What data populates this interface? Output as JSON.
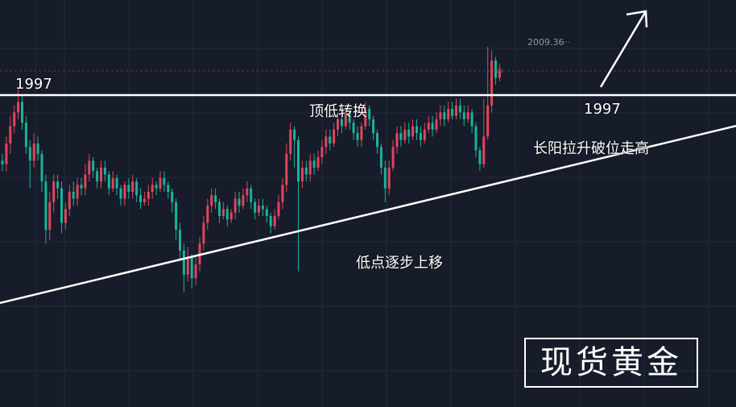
{
  "annotations": {
    "level_left": "1997",
    "level_right": "1997",
    "top_bottom_switch": "顶低转换",
    "higher_lows": "低点逐步上移",
    "long_bull_breakout": "长阳拉升破位走高"
  },
  "brand": {
    "text": "现货黄金"
  },
  "chart_data": {
    "type": "candlestick",
    "title": "",
    "xlabel": "",
    "ylabel": "",
    "grid": true,
    "ylim": [
      1925,
      2025
    ],
    "peak_label": "2009.36",
    "resistance_level": 1997,
    "trendline": {
      "from_index": 0,
      "from_price": 1937,
      "to_index": 182,
      "to_price": 1987
    },
    "colors": {
      "up": "#e0465c",
      "down": "#18b49a",
      "background": "#171c2a",
      "grid": "#232a3a",
      "line": "#ffffff"
    },
    "candles": [
      [
        1978,
        1977,
        1980,
        1975
      ],
      [
        1977,
        1983,
        1985,
        1975
      ],
      [
        1983,
        1988,
        1991,
        1980
      ],
      [
        1988,
        1992,
        1994,
        1986
      ],
      [
        1992,
        1995,
        1999,
        1990
      ],
      [
        1995,
        1989,
        1997,
        1987
      ],
      [
        1989,
        1982,
        1991,
        1980
      ],
      [
        1982,
        1978,
        1984,
        1970
      ],
      [
        1978,
        1983,
        1986,
        1976
      ],
      [
        1983,
        1980,
        1985,
        1978
      ],
      [
        1980,
        1972,
        1981,
        1969
      ],
      [
        1972,
        1958,
        1974,
        1954
      ],
      [
        1958,
        1966,
        1969,
        1955
      ],
      [
        1966,
        1972,
        1974,
        1963
      ],
      [
        1972,
        1970,
        1974,
        1967
      ],
      [
        1970,
        1960,
        1972,
        1957
      ],
      [
        1960,
        1964,
        1966,
        1958
      ],
      [
        1964,
        1969,
        1971,
        1962
      ],
      [
        1969,
        1967,
        1972,
        1965
      ],
      [
        1967,
        1971,
        1973,
        1965
      ],
      [
        1971,
        1970,
        1973,
        1968
      ],
      [
        1970,
        1974,
        1977,
        1968
      ],
      [
        1974,
        1978,
        1980,
        1972
      ],
      [
        1978,
        1975,
        1979,
        1973
      ],
      [
        1975,
        1972,
        1976,
        1970
      ],
      [
        1972,
        1976,
        1978,
        1970
      ],
      [
        1976,
        1974,
        1978,
        1972
      ],
      [
        1974,
        1970,
        1975,
        1968
      ],
      [
        1970,
        1973,
        1975,
        1969
      ],
      [
        1973,
        1970,
        1974,
        1968
      ],
      [
        1970,
        1967,
        1971,
        1965
      ],
      [
        1967,
        1971,
        1972,
        1965
      ],
      [
        1971,
        1969,
        1973,
        1967
      ],
      [
        1969,
        1972,
        1974,
        1967
      ],
      [
        1972,
        1968,
        1973,
        1966
      ],
      [
        1968,
        1966,
        1970,
        1964
      ],
      [
        1966,
        1967,
        1969,
        1965
      ],
      [
        1967,
        1969,
        1971,
        1965
      ],
      [
        1969,
        1971,
        1973,
        1967
      ],
      [
        1971,
        1970,
        1972,
        1968
      ],
      [
        1970,
        1973,
        1975,
        1969
      ],
      [
        1973,
        1971,
        1975,
        1969
      ],
      [
        1971,
        1969,
        1972,
        1967
      ],
      [
        1969,
        1966,
        1970,
        1963
      ],
      [
        1966,
        1958,
        1967,
        1955
      ],
      [
        1958,
        1952,
        1960,
        1949
      ],
      [
        1952,
        1945,
        1954,
        1940
      ],
      [
        1945,
        1950,
        1953,
        1943
      ],
      [
        1950,
        1944,
        1951,
        1941
      ],
      [
        1944,
        1948,
        1950,
        1942
      ],
      [
        1948,
        1954,
        1956,
        1946
      ],
      [
        1954,
        1960,
        1962,
        1952
      ],
      [
        1960,
        1965,
        1967,
        1958
      ],
      [
        1965,
        1968,
        1970,
        1963
      ],
      [
        1968,
        1966,
        1970,
        1964
      ],
      [
        1966,
        1962,
        1967,
        1960
      ],
      [
        1962,
        1964,
        1966,
        1961
      ],
      [
        1964,
        1961,
        1965,
        1959
      ],
      [
        1961,
        1963,
        1964,
        1960
      ],
      [
        1963,
        1967,
        1969,
        1961
      ],
      [
        1967,
        1965,
        1969,
        1963
      ],
      [
        1965,
        1968,
        1970,
        1964
      ],
      [
        1968,
        1970,
        1972,
        1966
      ],
      [
        1970,
        1966,
        1971,
        1964
      ],
      [
        1966,
        1963,
        1967,
        1961
      ],
      [
        1963,
        1965,
        1967,
        1962
      ],
      [
        1965,
        1964,
        1967,
        1962
      ],
      [
        1964,
        1962,
        1965,
        1960
      ],
      [
        1962,
        1959,
        1963,
        1957
      ],
      [
        1959,
        1962,
        1964,
        1958
      ],
      [
        1962,
        1966,
        1968,
        1961
      ],
      [
        1966,
        1971,
        1973,
        1964
      ],
      [
        1971,
        1980,
        1983,
        1969
      ],
      [
        1980,
        1987,
        1989,
        1978
      ],
      [
        1987,
        1984,
        1988,
        1976
      ],
      [
        1984,
        1972,
        1985,
        1946
      ],
      [
        1972,
        1976,
        1978,
        1970
      ],
      [
        1976,
        1974,
        1978,
        1972
      ],
      [
        1974,
        1978,
        1980,
        1972
      ],
      [
        1978,
        1976,
        1980,
        1974
      ],
      [
        1976,
        1979,
        1981,
        1975
      ],
      [
        1979,
        1982,
        1984,
        1977
      ],
      [
        1982,
        1985,
        1987,
        1980
      ],
      [
        1985,
        1983,
        1987,
        1981
      ],
      [
        1983,
        1987,
        1989,
        1982
      ],
      [
        1987,
        1990,
        1992,
        1985
      ],
      [
        1990,
        1988,
        1992,
        1986
      ],
      [
        1988,
        1992,
        1994,
        1987
      ],
      [
        1992,
        1989,
        1993,
        1987
      ],
      [
        1989,
        1986,
        1990,
        1984
      ],
      [
        1986,
        1984,
        1988,
        1982
      ],
      [
        1984,
        1988,
        1989,
        1982
      ],
      [
        1988,
        1993,
        1995,
        1987
      ],
      [
        1993,
        1990,
        1994,
        1988
      ],
      [
        1990,
        1986,
        1991,
        1984
      ],
      [
        1986,
        1982,
        1987,
        1980
      ],
      [
        1982,
        1976,
        1983,
        1974
      ],
      [
        1976,
        1970,
        1978,
        1966
      ],
      [
        1970,
        1976,
        1978,
        1968
      ],
      [
        1976,
        1982,
        1984,
        1975
      ],
      [
        1982,
        1986,
        1988,
        1980
      ],
      [
        1986,
        1984,
        1988,
        1982
      ],
      [
        1984,
        1987,
        1989,
        1983
      ],
      [
        1987,
        1985,
        1989,
        1983
      ],
      [
        1985,
        1988,
        1990,
        1984
      ],
      [
        1988,
        1986,
        1990,
        1984
      ],
      [
        1986,
        1984,
        1988,
        1982
      ],
      [
        1984,
        1987,
        1989,
        1983
      ],
      [
        1987,
        1989,
        1991,
        1986
      ],
      [
        1989,
        1987,
        1991,
        1985
      ],
      [
        1987,
        1990,
        1992,
        1986
      ],
      [
        1990,
        1992,
        1994,
        1988
      ],
      [
        1992,
        1990,
        1994,
        1988
      ],
      [
        1990,
        1993,
        1995,
        1989
      ],
      [
        1993,
        1991,
        1995,
        1990
      ],
      [
        1991,
        1994,
        1996,
        1990
      ],
      [
        1994,
        1992,
        1996,
        1990
      ],
      [
        1992,
        1990,
        1994,
        1988
      ],
      [
        1990,
        1992,
        1994,
        1989
      ],
      [
        1992,
        1988,
        1993,
        1986
      ],
      [
        1988,
        1981,
        1989,
        1979
      ],
      [
        1981,
        1977,
        1982,
        1975
      ],
      [
        1977,
        1985,
        1996,
        1976
      ],
      [
        1985,
        1994,
        2011,
        1984
      ],
      [
        1994,
        2007,
        2010,
        1992
      ],
      [
        2007,
        2002,
        2008,
        2000
      ],
      [
        2002,
        2004,
        2006,
        2001
      ]
    ]
  }
}
